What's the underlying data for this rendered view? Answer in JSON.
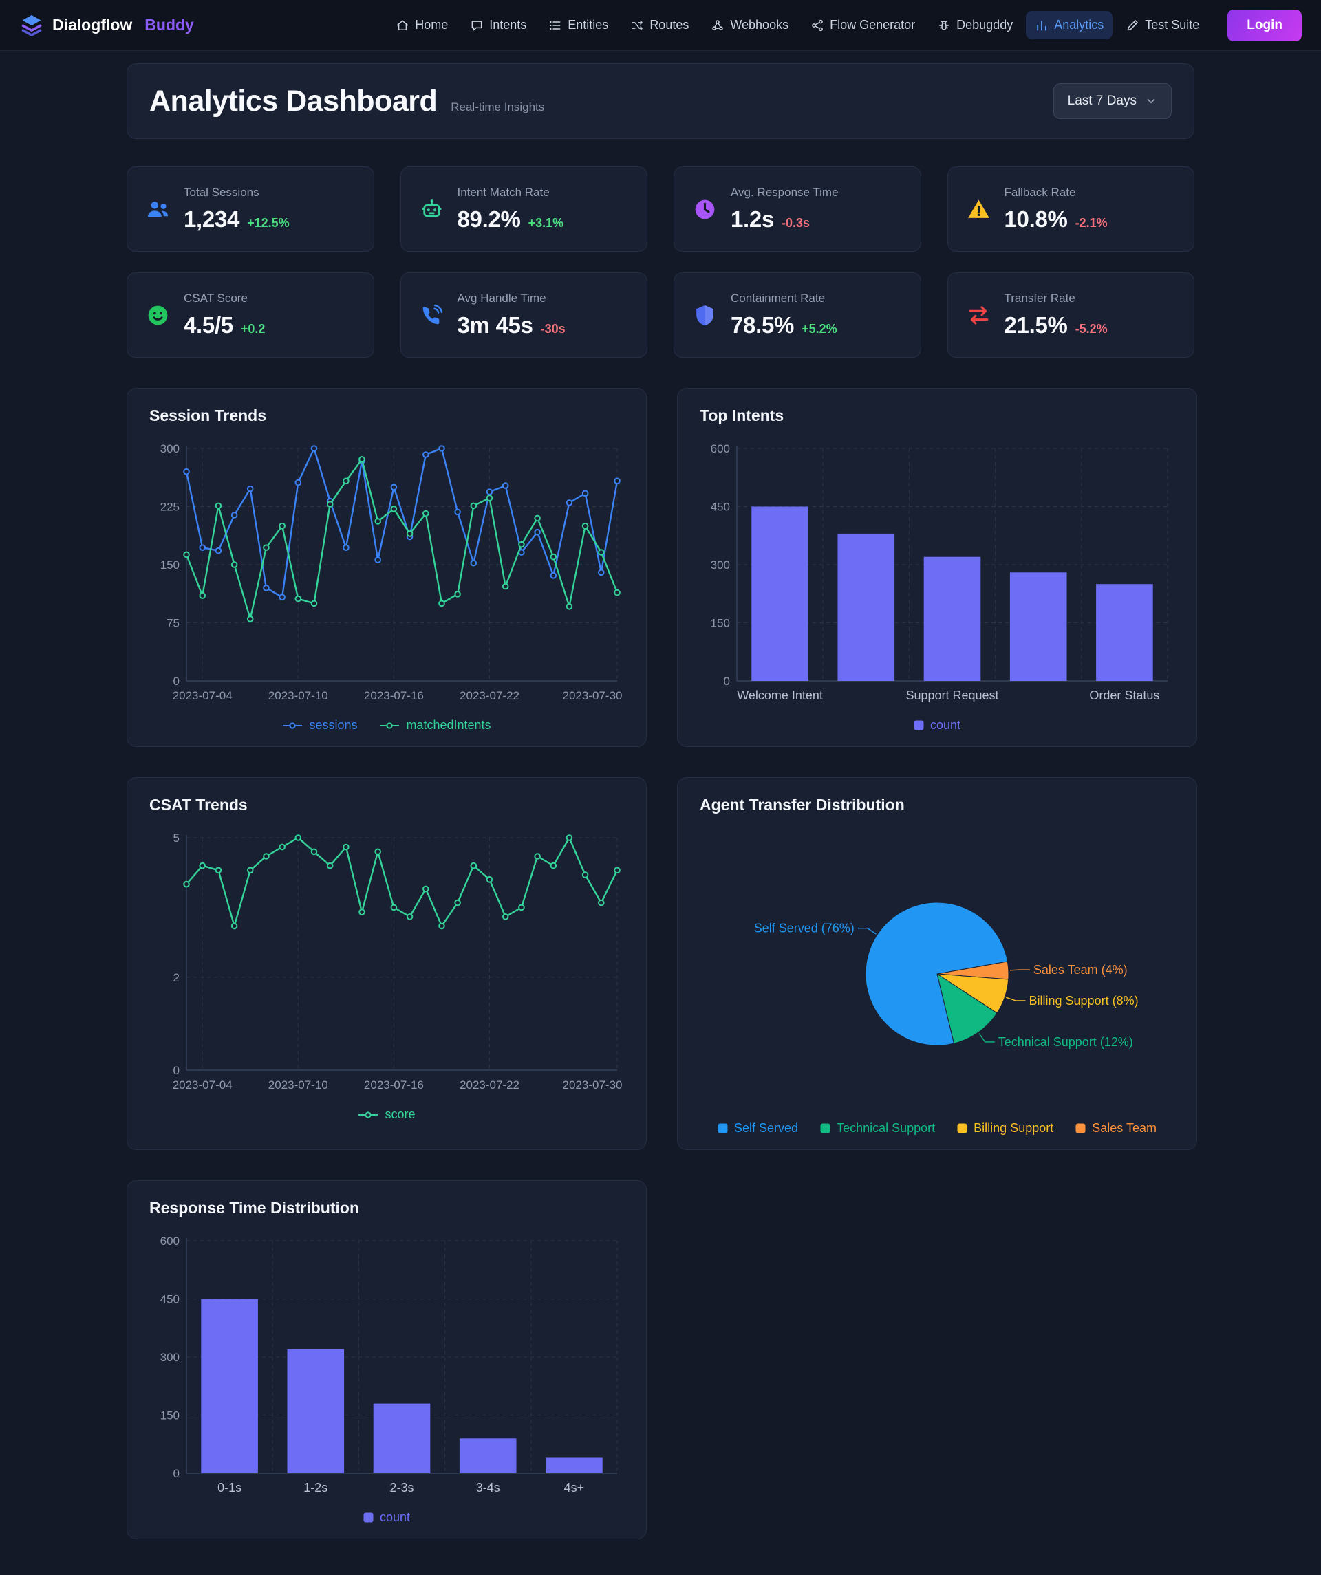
{
  "nav": {
    "brand": {
      "name_primary": "Dialogflow",
      "name_secondary": "Buddy"
    },
    "items": [
      {
        "label": "Home",
        "icon": "home-icon",
        "active": false
      },
      {
        "label": "Intents",
        "icon": "chat-icon",
        "active": false
      },
      {
        "label": "Entities",
        "icon": "list-icon",
        "active": false
      },
      {
        "label": "Routes",
        "icon": "routes-icon",
        "active": false
      },
      {
        "label": "Webhooks",
        "icon": "webhook-icon",
        "active": false
      },
      {
        "label": "Flow Generator",
        "icon": "flow-icon",
        "active": false
      },
      {
        "label": "Debugddy",
        "icon": "bug-icon",
        "active": false
      },
      {
        "label": "Analytics",
        "icon": "bar-chart-icon",
        "active": true
      },
      {
        "label": "Test Suite",
        "icon": "pen-icon",
        "active": false
      }
    ],
    "login_label": "Login"
  },
  "header": {
    "title": "Analytics Dashboard",
    "subtitle": "Real-time Insights",
    "range_selector": "Last 7 Days"
  },
  "kpis": [
    {
      "label": "Total Sessions",
      "value": "1,234",
      "delta": "+12.5%",
      "trend": "up",
      "icon": "users-icon"
    },
    {
      "label": "Intent Match Rate",
      "value": "89.2%",
      "delta": "+3.1%",
      "trend": "up",
      "icon": "robot-icon"
    },
    {
      "label": "Avg. Response Time",
      "value": "1.2s",
      "delta": "-0.3s",
      "trend": "down",
      "icon": "clock-icon"
    },
    {
      "label": "Fallback Rate",
      "value": "10.8%",
      "delta": "-2.1%",
      "trend": "down",
      "icon": "warning-icon"
    },
    {
      "label": "CSAT Score",
      "value": "4.5/5",
      "delta": "+0.2",
      "trend": "up",
      "icon": "smiley-icon"
    },
    {
      "label": "Avg Handle Time",
      "value": "3m 45s",
      "delta": "-30s",
      "trend": "down",
      "icon": "phone-icon"
    },
    {
      "label": "Containment Rate",
      "value": "78.5%",
      "delta": "+5.2%",
      "trend": "up",
      "icon": "shield-icon"
    },
    {
      "label": "Transfer Rate",
      "value": "21.5%",
      "delta": "-5.2%",
      "trend": "down",
      "icon": "transfer-icon"
    }
  ],
  "colors": {
    "accent_purple": "#8b5cf6",
    "positive": "#4ade80",
    "negative": "#f4717c",
    "bar": "#6d6ef5",
    "line_blue": "#3b82f6",
    "line_green": "#34d399"
  },
  "chart_data": [
    {
      "id": "session_trends",
      "type": "line",
      "title": "Session Trends",
      "x": [
        "2023-07-03",
        "2023-07-04",
        "2023-07-05",
        "2023-07-06",
        "2023-07-07",
        "2023-07-08",
        "2023-07-09",
        "2023-07-10",
        "2023-07-11",
        "2023-07-12",
        "2023-07-13",
        "2023-07-14",
        "2023-07-15",
        "2023-07-16",
        "2023-07-17",
        "2023-07-18",
        "2023-07-19",
        "2023-07-20",
        "2023-07-21",
        "2023-07-22",
        "2023-07-23",
        "2023-07-24",
        "2023-07-25",
        "2023-07-26",
        "2023-07-27",
        "2023-07-28",
        "2023-07-29",
        "2023-07-30"
      ],
      "x_tick_labels": [
        "2023-07-04",
        "2023-07-10",
        "2023-07-16",
        "2023-07-22",
        "2023-07-30"
      ],
      "series": [
        {
          "name": "sessions",
          "color": "#3b82f6",
          "values": [
            270,
            172,
            168,
            214,
            248,
            120,
            108,
            256,
            300,
            232,
            172,
            284,
            156,
            250,
            186,
            292,
            300,
            218,
            152,
            244,
            252,
            166,
            192,
            136,
            230,
            242,
            140,
            258
          ]
        },
        {
          "name": "matchedIntents",
          "color": "#34d399",
          "values": [
            163,
            110,
            226,
            150,
            80,
            172,
            200,
            106,
            100,
            228,
            258,
            286,
            206,
            222,
            190,
            216,
            100,
            112,
            226,
            236,
            122,
            176,
            210,
            160,
            96,
            200,
            166,
            114
          ]
        }
      ],
      "ylim": [
        0,
        300
      ],
      "yticks": [
        0,
        75,
        150,
        225,
        300
      ],
      "grid": true,
      "legend_position": "bottom"
    },
    {
      "id": "top_intents",
      "type": "bar",
      "title": "Top Intents",
      "categories": [
        "Welcome Intent",
        "",
        "Support Request",
        "",
        "Order Status"
      ],
      "series": [
        {
          "name": "count",
          "color": "#6d6ef5",
          "values": [
            450,
            380,
            320,
            280,
            250
          ]
        }
      ],
      "ylim": [
        0,
        600
      ],
      "yticks": [
        0,
        150,
        300,
        450,
        600
      ],
      "grid": true,
      "legend_position": "bottom"
    },
    {
      "id": "csat_trends",
      "type": "line",
      "title": "CSAT Trends",
      "x": [
        "2023-07-03",
        "2023-07-04",
        "2023-07-05",
        "2023-07-06",
        "2023-07-07",
        "2023-07-08",
        "2023-07-09",
        "2023-07-10",
        "2023-07-11",
        "2023-07-12",
        "2023-07-13",
        "2023-07-14",
        "2023-07-15",
        "2023-07-16",
        "2023-07-17",
        "2023-07-18",
        "2023-07-19",
        "2023-07-20",
        "2023-07-21",
        "2023-07-22",
        "2023-07-23",
        "2023-07-24",
        "2023-07-25",
        "2023-07-26",
        "2023-07-27",
        "2023-07-28",
        "2023-07-29",
        "2023-07-30"
      ],
      "x_tick_labels": [
        "2023-07-04",
        "2023-07-10",
        "2023-07-16",
        "2023-07-22",
        "2023-07-30"
      ],
      "series": [
        {
          "name": "score",
          "color": "#34d399",
          "values": [
            4.0,
            4.4,
            4.3,
            3.1,
            4.3,
            4.6,
            4.8,
            5.0,
            4.7,
            4.4,
            4.8,
            3.4,
            4.7,
            3.5,
            3.3,
            3.9,
            3.1,
            3.6,
            4.4,
            4.1,
            3.3,
            3.5,
            4.6,
            4.4,
            5.0,
            4.2,
            3.6,
            4.3
          ]
        }
      ],
      "ylim": [
        0,
        5
      ],
      "yticks": [
        0,
        2,
        5
      ],
      "grid": true,
      "legend_position": "bottom"
    },
    {
      "id": "agent_transfer",
      "type": "pie",
      "title": "Agent Transfer Distribution",
      "slices": [
        {
          "name": "Self Served",
          "value": 76,
          "color": "#2196f3"
        },
        {
          "name": "Technical Support",
          "value": 12,
          "color": "#10b981"
        },
        {
          "name": "Billing Support",
          "value": 8,
          "color": "#fbbf24"
        },
        {
          "name": "Sales Team",
          "value": 4,
          "color": "#fb923c"
        }
      ],
      "label_format": "{name} ({value}%)",
      "start_angle": 80,
      "legend_position": "bottom"
    },
    {
      "id": "response_time",
      "type": "bar",
      "title": "Response Time Distribution",
      "categories": [
        "0-1s",
        "1-2s",
        "2-3s",
        "3-4s",
        "4s+"
      ],
      "series": [
        {
          "name": "count",
          "color": "#6d6ef5",
          "values": [
            450,
            320,
            180,
            90,
            40
          ]
        }
      ],
      "ylim": [
        0,
        600
      ],
      "yticks": [
        0,
        150,
        300,
        450,
        600
      ],
      "grid": true,
      "legend_position": "bottom"
    }
  ]
}
